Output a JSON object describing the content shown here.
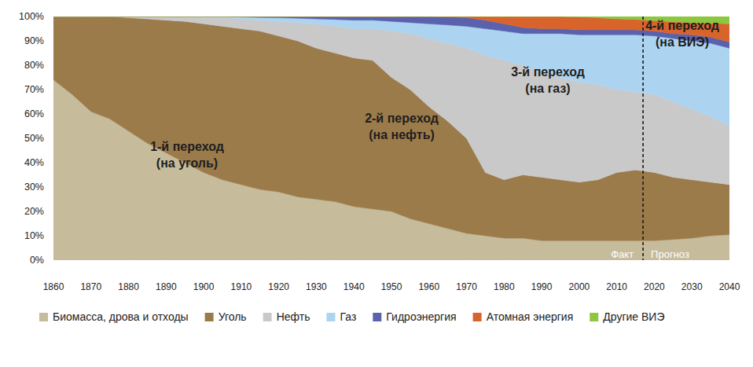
{
  "chart_data": {
    "type": "area",
    "stacked": true,
    "grid": false,
    "legend": "bottom",
    "x": [
      1860,
      1865,
      1870,
      1875,
      1880,
      1885,
      1890,
      1895,
      1900,
      1905,
      1910,
      1915,
      1920,
      1925,
      1930,
      1935,
      1940,
      1945,
      1950,
      1955,
      1960,
      1965,
      1970,
      1975,
      1980,
      1985,
      1990,
      1995,
      2000,
      2005,
      2010,
      2015,
      2020,
      2025,
      2030,
      2035,
      2040
    ],
    "xlim": [
      1860,
      2040
    ],
    "xticks": [
      1860,
      1870,
      1880,
      1890,
      1900,
      1910,
      1920,
      1930,
      1940,
      1950,
      1960,
      1970,
      1980,
      1990,
      2000,
      2010,
      2020,
      2030,
      2040
    ],
    "ylim": [
      0,
      100
    ],
    "yticks": [
      {
        "value": 0,
        "label": "0%"
      },
      {
        "value": 10,
        "label": "10%"
      },
      {
        "value": 20,
        "label": "20%"
      },
      {
        "value": 30,
        "label": "30%"
      },
      {
        "value": 40,
        "label": "40%"
      },
      {
        "value": 50,
        "label": "50%"
      },
      {
        "value": 60,
        "label": "60%"
      },
      {
        "value": 70,
        "label": "70%"
      },
      {
        "value": 80,
        "label": "80%"
      },
      {
        "value": 90,
        "label": "90%"
      },
      {
        "value": 100,
        "label": "100%"
      }
    ],
    "series": [
      {
        "name": "Биомасса, дрова и отходы",
        "color": "#c6bb9b",
        "values": [
          74,
          68,
          61,
          58,
          53,
          48,
          44,
          40,
          36,
          33,
          31,
          29,
          28,
          26,
          25,
          24,
          22,
          21,
          20,
          17,
          15,
          13,
          11,
          10,
          9,
          9,
          8,
          8,
          8,
          8,
          8,
          8,
          8,
          8.5,
          9,
          10,
          10.5
        ]
      },
      {
        "name": "Уголь",
        "color": "#9c7b4b",
        "values": [
          26,
          32,
          39,
          42,
          46.5,
          51,
          54.5,
          58,
          61,
          63,
          64,
          65,
          64,
          64,
          62,
          61,
          61,
          61,
          55,
          53,
          48,
          44,
          39,
          26,
          24,
          26,
          26,
          25,
          24,
          25,
          28,
          29,
          28,
          25.5,
          24,
          22,
          20.5
        ]
      },
      {
        "name": "Нефть",
        "color": "#c9c9c9",
        "values": [
          0,
          0,
          0,
          0,
          0.5,
          1,
          1.5,
          2,
          2.5,
          3.5,
          4,
          4.5,
          6,
          7.5,
          10,
          11,
          12,
          13,
          19,
          23,
          28,
          32,
          37,
          48,
          49,
          45,
          43,
          42,
          41,
          39,
          34,
          32,
          32,
          31,
          29,
          27,
          24
        ]
      },
      {
        "name": "Газ",
        "color": "#acd4f1",
        "values": [
          0,
          0,
          0,
          0,
          0,
          0,
          0,
          0,
          0.5,
          0.5,
          0.8,
          1.1,
          1.5,
          1.8,
          2,
          2.8,
          3.5,
          3.5,
          4,
          4.5,
          6,
          7.5,
          9,
          11,
          12,
          13,
          16,
          18,
          19.5,
          20.5,
          22.5,
          23.5,
          24,
          26,
          28,
          30,
          32
        ]
      },
      {
        "name": "Гидроэнергия",
        "color": "#5a61ad",
        "values": [
          0,
          0,
          0,
          0,
          0,
          0,
          0,
          0,
          0,
          0,
          0.2,
          0.4,
          0.5,
          0.7,
          1,
          1.2,
          1.5,
          1.5,
          2,
          2.5,
          3,
          3.3,
          3.5,
          3.5,
          3,
          2.5,
          2,
          2,
          2,
          2,
          2,
          2,
          2,
          2,
          2.5,
          2.5,
          2.5
        ]
      },
      {
        "name": "Атомная энергия",
        "color": "#d8632b",
        "values": [
          0,
          0,
          0,
          0,
          0,
          0,
          0,
          0,
          0,
          0,
          0,
          0,
          0,
          0,
          0,
          0,
          0,
          0,
          0,
          0,
          0,
          0.2,
          0.5,
          1.5,
          3,
          4.5,
          5,
          5,
          5.3,
          5,
          4.5,
          4.3,
          4.3,
          4.8,
          5,
          5.7,
          7.5
        ]
      },
      {
        "name": "Другие ВИЭ",
        "color": "#8dc63f",
        "values": [
          0,
          0,
          0,
          0,
          0,
          0,
          0,
          0,
          0,
          0,
          0,
          0,
          0,
          0,
          0,
          0,
          0,
          0,
          0,
          0,
          0,
          0,
          0,
          0,
          0,
          0,
          0,
          0,
          0.2,
          0.5,
          1,
          1.2,
          1.7,
          2.2,
          2.5,
          2.8,
          3
        ]
      }
    ],
    "annotations": [
      {
        "lines": [
          "1-й переход",
          "(на уголь)"
        ]
      },
      {
        "lines": [
          "2-й переход",
          "(на нефть)"
        ]
      },
      {
        "lines": [
          "3-й переход",
          "(на газ)"
        ]
      },
      {
        "lines": [
          "4-й переход",
          "(на ВИЭ)"
        ]
      }
    ],
    "divider": {
      "x": 2017,
      "labels": [
        "Факт",
        "Прогноз"
      ]
    }
  }
}
